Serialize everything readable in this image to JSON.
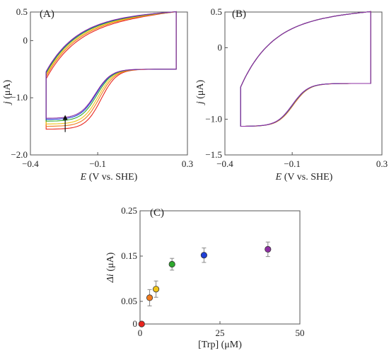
{
  "chart_data": [
    {
      "type": "line",
      "panel_label": "(A)",
      "xlabel_italic": "E",
      "xlabel_rest": " (V vs. SHE)",
      "ylabel_italic": "j",
      "ylabel_rest": " (μA)",
      "xlim": [
        -0.4,
        0.3
      ],
      "ylim": [
        -2.0,
        0.5
      ],
      "x_ticks": [
        {
          "value": -0.4,
          "label": "−0.4"
        },
        {
          "value": -0.1,
          "label": "−0.1"
        },
        {
          "value": 0.3,
          "label": "0.3"
        }
      ],
      "y_ticks": [
        {
          "value": 0.5,
          "label": "0.5"
        },
        {
          "value": 0,
          "label": "0"
        },
        {
          "value": -1.0,
          "label": "−1.0"
        },
        {
          "value": -2.0,
          "label": "−2.0"
        }
      ],
      "arrow": {
        "x": -0.245,
        "y_from": -1.6,
        "y_to": -1.3
      },
      "series": [
        {
          "color": "#e8251f",
          "upper_shift": -0.12,
          "lower_y0": -1.55,
          "lower_mid": -0.085
        },
        {
          "color": "#f07a1e",
          "upper_shift": -0.08,
          "lower_y0": -1.5,
          "lower_mid": -0.092
        },
        {
          "color": "#f0c419",
          "upper_shift": -0.05,
          "lower_y0": -1.46,
          "lower_mid": -0.098
        },
        {
          "color": "#2ea82e",
          "upper_shift": -0.02,
          "lower_y0": -1.41,
          "lower_mid": -0.104
        },
        {
          "color": "#1f3fd6",
          "upper_shift": 0.0,
          "lower_y0": -1.38,
          "lower_mid": -0.108
        },
        {
          "color": "#8e2fa3",
          "upper_shift": 0.01,
          "lower_y0": -1.36,
          "lower_mid": -0.11
        }
      ]
    },
    {
      "type": "line",
      "panel_label": "(B)",
      "xlabel_italic": "E",
      "xlabel_rest": " (V vs. SHE)",
      "ylabel_italic": "j",
      "ylabel_rest": " (μA)",
      "xlim": [
        -0.4,
        0.3
      ],
      "ylim": [
        -1.5,
        0.5
      ],
      "x_ticks": [
        {
          "value": -0.4,
          "label": "−0.4"
        },
        {
          "value": -0.1,
          "label": "−0.1"
        },
        {
          "value": 0.3,
          "label": "0.3"
        }
      ],
      "y_ticks": [
        {
          "value": 0.5,
          "label": "0.5"
        },
        {
          "value": 0,
          "label": "0"
        },
        {
          "value": -1.0,
          "label": "−1.0"
        },
        {
          "value": -1.5,
          "label": "−1.5"
        }
      ],
      "series": [
        {
          "color": "#e8251f",
          "upper_shift": 0.0,
          "lower_y0": -1.1,
          "lower_mid": -0.095
        },
        {
          "color": "#f07a1e",
          "upper_shift": 0.0,
          "lower_y0": -1.1,
          "lower_mid": -0.096
        },
        {
          "color": "#f0c419",
          "upper_shift": 0.0,
          "lower_y0": -1.1,
          "lower_mid": -0.097
        },
        {
          "color": "#2ea82e",
          "upper_shift": 0.0,
          "lower_y0": -1.1,
          "lower_mid": -0.098
        },
        {
          "color": "#1f3fd6",
          "upper_shift": 0.0,
          "lower_y0": -1.1,
          "lower_mid": -0.099
        },
        {
          "color": "#8e2fa3",
          "upper_shift": 0.0,
          "lower_y0": -1.1,
          "lower_mid": -0.1
        }
      ]
    },
    {
      "type": "scatter",
      "panel_label": "(C)",
      "xlabel": "[Trp] (μM)",
      "ylabel_italic": "Δi",
      "ylabel_rest": " (μA)",
      "xlim": [
        0,
        50
      ],
      "ylim": [
        0,
        0.25
      ],
      "x_ticks": [
        {
          "value": 0,
          "label": "0"
        },
        {
          "value": 25,
          "label": "25"
        },
        {
          "value": 50,
          "label": "50"
        }
      ],
      "y_ticks": [
        {
          "value": 0,
          "label": "0"
        },
        {
          "value": 0.05,
          "label": "0.05"
        },
        {
          "value": 0.15,
          "label": "0.15"
        },
        {
          "value": 0.25,
          "label": "0.25"
        }
      ],
      "points": [
        {
          "x": 0.5,
          "y": 0.0,
          "err": 0.0,
          "color": "#e8251f"
        },
        {
          "x": 3,
          "y": 0.058,
          "err": 0.018,
          "color": "#f07a1e"
        },
        {
          "x": 5,
          "y": 0.077,
          "err": 0.018,
          "color": "#f0c419"
        },
        {
          "x": 10,
          "y": 0.132,
          "err": 0.013,
          "color": "#2ea82e"
        },
        {
          "x": 20,
          "y": 0.152,
          "err": 0.016,
          "color": "#1f3fd6"
        },
        {
          "x": 40,
          "y": 0.165,
          "err": 0.016,
          "color": "#8e2fa3"
        }
      ]
    }
  ]
}
